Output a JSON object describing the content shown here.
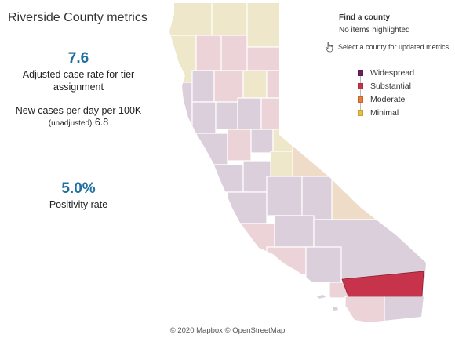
{
  "header": {
    "title": "Riverside County metrics"
  },
  "metrics": {
    "case_rate_value": "7.6",
    "case_rate_label_line1": "Adjusted case rate for tier",
    "case_rate_label_line2": "assignment",
    "new_cases_label": "New cases per day per 100K",
    "unadjusted_label": "(unadjusted)",
    "unadjusted_value": "6.8",
    "positivity_value": "5.0%",
    "positivity_label": "Positivity rate"
  },
  "county_finder": {
    "title": "Find a county",
    "status": "No items highlighted",
    "hint": "Select a county for updated metrics",
    "hint_icon": "pointer-hand-icon"
  },
  "legend": {
    "items": [
      {
        "label": "Widespread",
        "color": "#6b2160"
      },
      {
        "label": "Substantial",
        "color": "#c7334b"
      },
      {
        "label": "Moderate",
        "color": "#e87b33"
      },
      {
        "label": "Minimal",
        "color": "#e9bf3c"
      }
    ]
  },
  "map": {
    "highlighted_county": "Riverside",
    "colors": {
      "widespread_faded": "#dccfdc",
      "substantial_faded": "#ebd3d7",
      "moderate_faded": "#efdcc8",
      "minimal_faded": "#efe7c9",
      "highlight": "#c7334b"
    }
  },
  "footer": {
    "attribution": "© 2020 Mapbox © OpenStreetMap"
  }
}
